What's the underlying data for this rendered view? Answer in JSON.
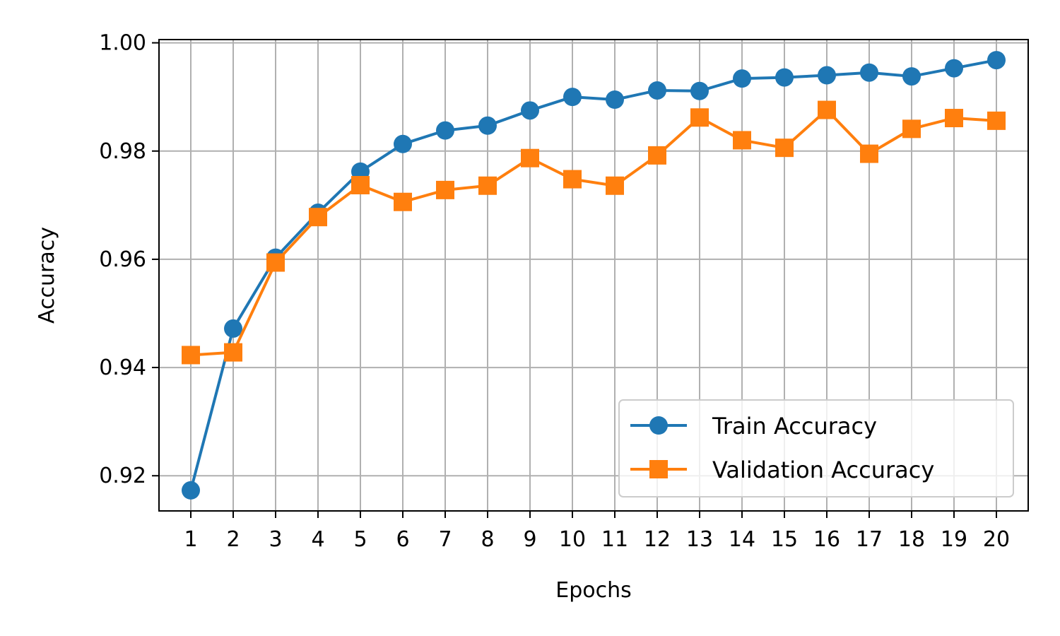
{
  "chart_data": {
    "type": "line",
    "title": "",
    "xlabel": "Epochs",
    "ylabel": "Accuracy",
    "x": [
      1,
      2,
      3,
      4,
      5,
      6,
      7,
      8,
      9,
      10,
      11,
      12,
      13,
      14,
      15,
      16,
      17,
      18,
      19,
      20
    ],
    "xticks": [
      1,
      2,
      3,
      4,
      5,
      6,
      7,
      8,
      9,
      10,
      11,
      12,
      13,
      14,
      15,
      16,
      17,
      18,
      19,
      20
    ],
    "xlim": [
      0.25,
      20.75
    ],
    "ylim": [
      0.9135,
      1.0006
    ],
    "yticks": [
      0.92,
      0.94,
      0.96,
      0.98,
      1.0
    ],
    "ytick_labels": [
      "0.92",
      "0.94",
      "0.96",
      "0.98",
      "1.00"
    ],
    "grid": true,
    "legend_position": "lower-right",
    "series": [
      {
        "name": "Train Accuracy",
        "color": "#1f77b4",
        "marker": "circle",
        "values": [
          0.9173,
          0.9472,
          0.9603,
          0.9686,
          0.9762,
          0.9813,
          0.9838,
          0.9847,
          0.9875,
          0.99,
          0.9895,
          0.9912,
          0.9911,
          0.9934,
          0.9936,
          0.994,
          0.9945,
          0.9938,
          0.9953,
          0.9968
        ]
      },
      {
        "name": "Validation Accuracy",
        "color": "#ff7f0e",
        "marker": "square",
        "values": [
          0.9423,
          0.9428,
          0.9594,
          0.9678,
          0.9737,
          0.9706,
          0.9728,
          0.9736,
          0.9787,
          0.9748,
          0.9736,
          0.9792,
          0.9862,
          0.982,
          0.9806,
          0.9876,
          0.9795,
          0.9841,
          0.9861,
          0.9856
        ]
      }
    ]
  }
}
